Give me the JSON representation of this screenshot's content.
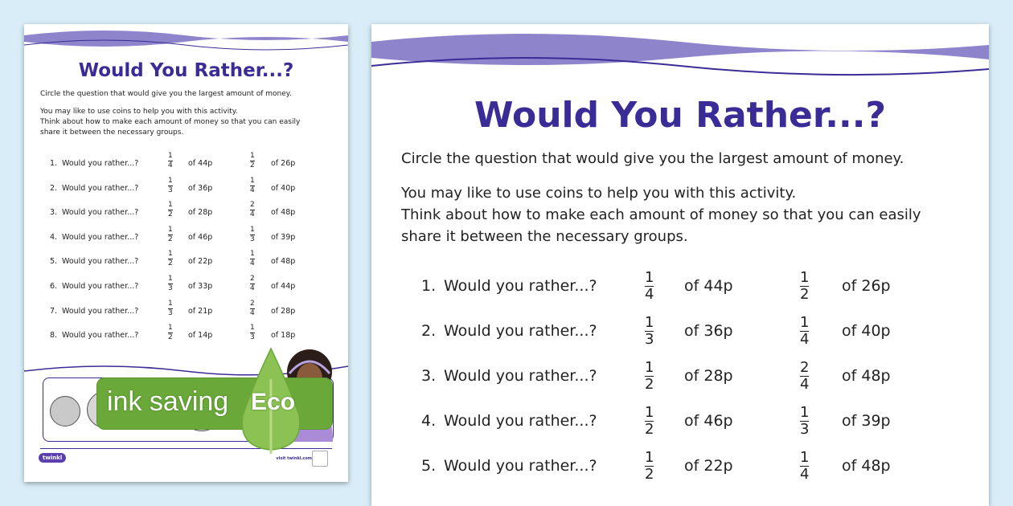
{
  "worksheet": {
    "title": "Would You Rather...?",
    "instruction": "Circle the question that would give you the largest amount of money.",
    "tip_lines": [
      "You may like to use coins to help you with this activity.",
      "Think about how to make each amount of money so that you can easily",
      "share it between the necessary groups."
    ],
    "rows": [
      {
        "num": "1.",
        "q": "Would you rather...?",
        "a_n": "1",
        "a_d": "4",
        "a_amt": "of 44p",
        "b_n": "1",
        "b_d": "2",
        "b_amt": "of 26p"
      },
      {
        "num": "2.",
        "q": "Would you rather...?",
        "a_n": "1",
        "a_d": "3",
        "a_amt": "of 36p",
        "b_n": "1",
        "b_d": "4",
        "b_amt": "of 40p"
      },
      {
        "num": "3.",
        "q": "Would you rather...?",
        "a_n": "1",
        "a_d": "2",
        "a_amt": "of 28p",
        "b_n": "2",
        "b_d": "4",
        "b_amt": "of 48p"
      },
      {
        "num": "4.",
        "q": "Would you rather...?",
        "a_n": "1",
        "a_d": "2",
        "a_amt": "of 46p",
        "b_n": "1",
        "b_d": "3",
        "b_amt": "of 39p"
      },
      {
        "num": "5.",
        "q": "Would you rather...?",
        "a_n": "1",
        "a_d": "2",
        "a_amt": "of 22p",
        "b_n": "1",
        "b_d": "4",
        "b_amt": "of 48p"
      },
      {
        "num": "6.",
        "q": "Would you rather...?",
        "a_n": "1",
        "a_d": "3",
        "a_amt": "of 33p",
        "b_n": "2",
        "b_d": "4",
        "b_amt": "of 44p"
      },
      {
        "num": "7.",
        "q": "Would you rather...?",
        "a_n": "1",
        "a_d": "3",
        "a_amt": "of 21p",
        "b_n": "2",
        "b_d": "4",
        "b_amt": "of 28p"
      },
      {
        "num": "8.",
        "q": "Would you rather...?",
        "a_n": "1",
        "a_d": "2",
        "a_amt": "of 14p",
        "b_n": "1",
        "b_d": "3",
        "b_amt": "of 18p"
      }
    ],
    "footer_logo": "twinkl",
    "footer_site": "visit twinkl.com"
  },
  "eco_badge": {
    "text": "ink saving",
    "label": "Eco",
    "color": "#6aa83a"
  },
  "colors": {
    "title": "#3a2c96",
    "wave": "#8e84cc",
    "background": "#d9edf8"
  }
}
